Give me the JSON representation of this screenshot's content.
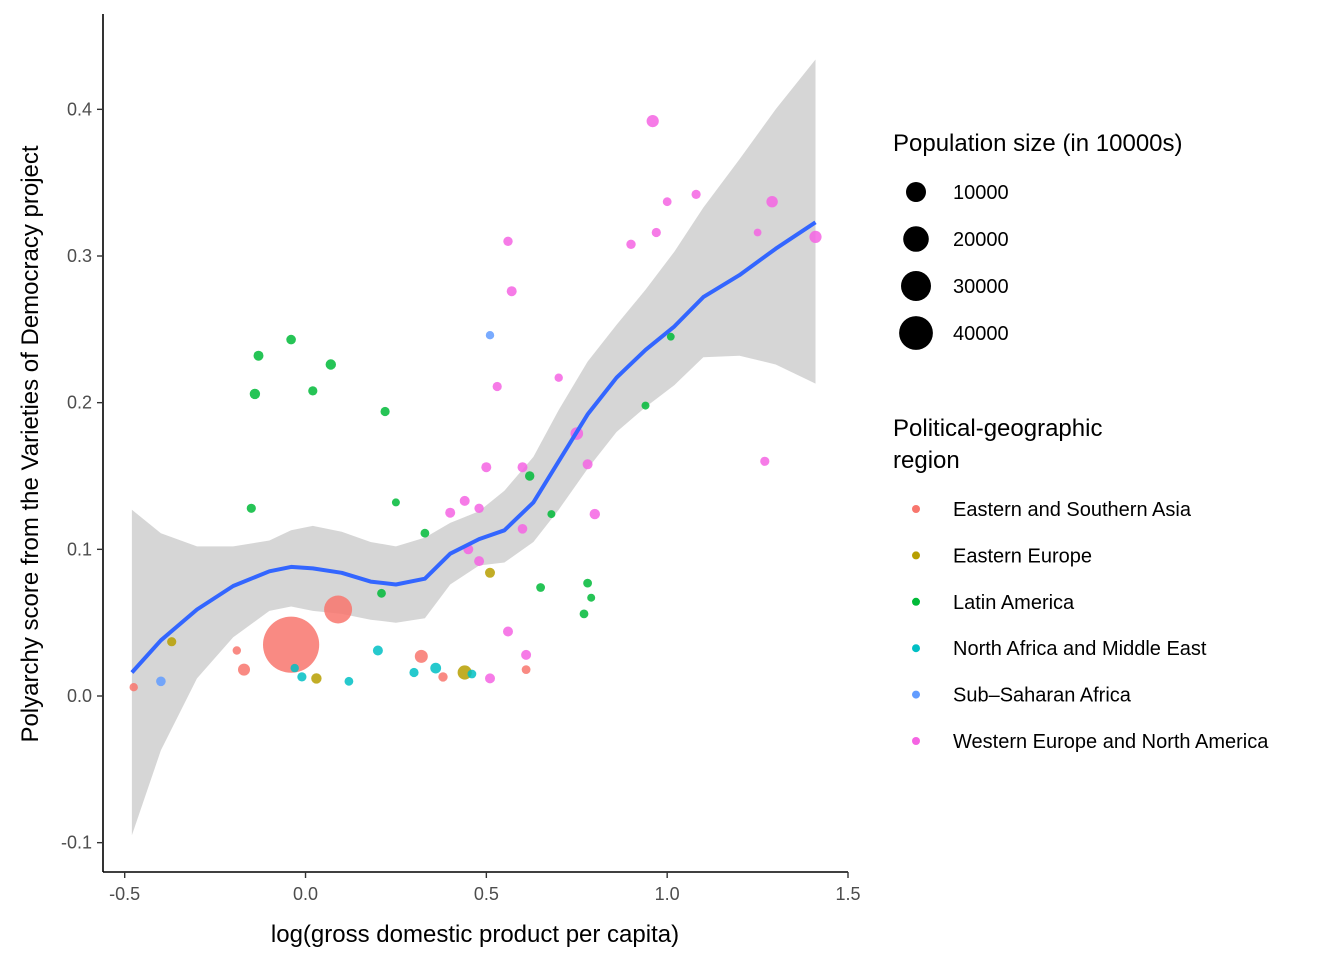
{
  "chart_data": {
    "type": "scatter",
    "xlabel": "log(gross domestic product per capita)",
    "ylabel": "Polyarchy score from the Varieties of Democracy project",
    "xlim": [
      -0.56,
      1.5
    ],
    "ylim": [
      -0.12,
      0.465
    ],
    "x_ticks": [
      -0.5,
      0,
      0.5,
      1.0,
      1.5
    ],
    "x_tick_labels": [
      "-0.5",
      "0.0",
      "0.5",
      "1.0",
      "1.5"
    ],
    "y_ticks": [
      -0.1,
      0,
      0.1,
      0.2,
      0.3,
      0.4
    ],
    "y_tick_labels": [
      "-0.1",
      "0.0",
      "0.1",
      "0.2",
      "0.3",
      "0.4"
    ],
    "grid": false,
    "legend_position": "right",
    "size_legend": {
      "title": "Population size (in 10000s)",
      "entries": [
        {
          "label": "10000",
          "value": 10000
        },
        {
          "label": "20000",
          "value": 20000
        },
        {
          "label": "30000",
          "value": 30000
        },
        {
          "label": "40000",
          "value": 40000
        }
      ]
    },
    "color_legend": {
      "title_lines": [
        "Political-geographic",
        "region"
      ],
      "entries": [
        {
          "label": "Eastern and Southern Asia",
          "color": "#F8766D"
        },
        {
          "label": "Eastern Europe",
          "color": "#B79F00"
        },
        {
          "label": "Latin America",
          "color": "#00BA38"
        },
        {
          "label": "North Africa and Middle East",
          "color": "#00BFC4"
        },
        {
          "label": "Sub–Saharan Africa",
          "color": "#619CFF"
        },
        {
          "label": "Western Europe and North America",
          "color": "#F564E3"
        }
      ]
    },
    "smooth": {
      "color": "#3366FF",
      "band_color": "#999999",
      "x": [
        -0.48,
        -0.4,
        -0.3,
        -0.2,
        -0.1,
        -0.04,
        0.02,
        0.1,
        0.18,
        0.25,
        0.33,
        0.4,
        0.48,
        0.55,
        0.63,
        0.7,
        0.78,
        0.86,
        0.94,
        1.02,
        1.1,
        1.2,
        1.3,
        1.41
      ],
      "y": [
        0.016,
        0.038,
        0.059,
        0.075,
        0.085,
        0.088,
        0.087,
        0.084,
        0.078,
        0.076,
        0.08,
        0.097,
        0.107,
        0.113,
        0.132,
        0.16,
        0.192,
        0.217,
        0.236,
        0.252,
        0.272,
        0.287,
        0.305,
        0.323
      ],
      "upper": [
        0.127,
        0.111,
        0.102,
        0.102,
        0.106,
        0.113,
        0.116,
        0.112,
        0.105,
        0.102,
        0.108,
        0.118,
        0.126,
        0.14,
        0.163,
        0.195,
        0.228,
        0.253,
        0.277,
        0.303,
        0.333,
        0.366,
        0.4,
        0.434
      ],
      "lower": [
        -0.095,
        -0.037,
        0.012,
        0.04,
        0.058,
        0.061,
        0.058,
        0.056,
        0.052,
        0.05,
        0.053,
        0.076,
        0.089,
        0.091,
        0.105,
        0.127,
        0.155,
        0.18,
        0.197,
        0.212,
        0.231,
        0.232,
        0.226,
        0.213
      ]
    },
    "series": [
      {
        "name": "Eastern and Southern Asia",
        "color": "#F8766D",
        "points": [
          {
            "x": -0.475,
            "y": 0.006,
            "pop": 300
          },
          {
            "x": -0.19,
            "y": 0.031,
            "pop": 300
          },
          {
            "x": -0.17,
            "y": 0.018,
            "pop": 1800
          },
          {
            "x": -0.04,
            "y": 0.035,
            "pop": 130000
          },
          {
            "x": 0.09,
            "y": 0.059,
            "pop": 25000
          },
          {
            "x": 0.32,
            "y": 0.027,
            "pop": 2500
          },
          {
            "x": 0.38,
            "y": 0.013,
            "pop": 600
          },
          {
            "x": 0.61,
            "y": 0.018,
            "pop": 400
          }
        ]
      },
      {
        "name": "Eastern Europe",
        "color": "#B79F00",
        "points": [
          {
            "x": -0.37,
            "y": 0.037,
            "pop": 500
          },
          {
            "x": 0.03,
            "y": 0.012,
            "pop": 1000
          },
          {
            "x": 0.44,
            "y": 0.016,
            "pop": 3500
          },
          {
            "x": 0.51,
            "y": 0.084,
            "pop": 800
          }
        ]
      },
      {
        "name": "Latin America",
        "color": "#00BA38",
        "points": [
          {
            "x": -0.14,
            "y": 0.206,
            "pop": 1000
          },
          {
            "x": -0.13,
            "y": 0.232,
            "pop": 800
          },
          {
            "x": -0.04,
            "y": 0.243,
            "pop": 700
          },
          {
            "x": 0.02,
            "y": 0.208,
            "pop": 500
          },
          {
            "x": 0.07,
            "y": 0.226,
            "pop": 1000
          },
          {
            "x": -0.15,
            "y": 0.128,
            "pop": 500
          },
          {
            "x": 0.22,
            "y": 0.194,
            "pop": 500
          },
          {
            "x": 0.25,
            "y": 0.132,
            "pop": 200
          },
          {
            "x": 0.33,
            "y": 0.111,
            "pop": 400
          },
          {
            "x": 0.21,
            "y": 0.07,
            "pop": 400
          },
          {
            "x": 0.62,
            "y": 0.15,
            "pop": 600
          },
          {
            "x": 0.65,
            "y": 0.074,
            "pop": 400
          },
          {
            "x": 0.68,
            "y": 0.124,
            "pop": 200
          },
          {
            "x": 0.78,
            "y": 0.077,
            "pop": 400
          },
          {
            "x": 0.77,
            "y": 0.056,
            "pop": 400
          },
          {
            "x": 0.79,
            "y": 0.067,
            "pop": 200
          },
          {
            "x": 0.94,
            "y": 0.198,
            "pop": 200
          },
          {
            "x": 1.01,
            "y": 0.245,
            "pop": 150
          }
        ]
      },
      {
        "name": "North Africa and Middle East",
        "color": "#00BFC4",
        "points": [
          {
            "x": -0.03,
            "y": 0.019,
            "pop": 300
          },
          {
            "x": -0.01,
            "y": 0.013,
            "pop": 500
          },
          {
            "x": 0.12,
            "y": 0.01,
            "pop": 400
          },
          {
            "x": 0.2,
            "y": 0.031,
            "pop": 800
          },
          {
            "x": 0.3,
            "y": 0.016,
            "pop": 500
          },
          {
            "x": 0.36,
            "y": 0.019,
            "pop": 1200
          },
          {
            "x": 0.46,
            "y": 0.015,
            "pop": 400
          }
        ]
      },
      {
        "name": "Sub–Saharan Africa",
        "color": "#619CFF",
        "points": [
          {
            "x": -0.4,
            "y": 0.01,
            "pop": 700
          },
          {
            "x": 0.51,
            "y": 0.246,
            "pop": 300
          }
        ]
      },
      {
        "name": "Western Europe and North America",
        "color": "#F564E3",
        "points": [
          {
            "x": 0.96,
            "y": 0.392,
            "pop": 2000
          },
          {
            "x": 1.0,
            "y": 0.337,
            "pop": 400
          },
          {
            "x": 1.08,
            "y": 0.342,
            "pop": 500
          },
          {
            "x": 1.29,
            "y": 0.337,
            "pop": 1500
          },
          {
            "x": 0.9,
            "y": 0.308,
            "pop": 600
          },
          {
            "x": 0.97,
            "y": 0.316,
            "pop": 500
          },
          {
            "x": 1.25,
            "y": 0.316,
            "pop": 150
          },
          {
            "x": 1.41,
            "y": 0.313,
            "pop": 2000
          },
          {
            "x": 0.56,
            "y": 0.31,
            "pop": 600
          },
          {
            "x": 0.57,
            "y": 0.276,
            "pop": 800
          },
          {
            "x": 0.53,
            "y": 0.211,
            "pop": 500
          },
          {
            "x": 0.7,
            "y": 0.217,
            "pop": 300
          },
          {
            "x": 0.75,
            "y": 0.179,
            "pop": 2200
          },
          {
            "x": 0.78,
            "y": 0.158,
            "pop": 800
          },
          {
            "x": 0.5,
            "y": 0.156,
            "pop": 800
          },
          {
            "x": 0.6,
            "y": 0.156,
            "pop": 800
          },
          {
            "x": 1.27,
            "y": 0.16,
            "pop": 500
          },
          {
            "x": 0.44,
            "y": 0.133,
            "pop": 800
          },
          {
            "x": 0.4,
            "y": 0.125,
            "pop": 800
          },
          {
            "x": 0.48,
            "y": 0.128,
            "pop": 600
          },
          {
            "x": 0.6,
            "y": 0.114,
            "pop": 700
          },
          {
            "x": 0.8,
            "y": 0.124,
            "pop": 1000
          },
          {
            "x": 0.45,
            "y": 0.1,
            "pop": 800
          },
          {
            "x": 0.48,
            "y": 0.092,
            "pop": 800
          },
          {
            "x": 0.56,
            "y": 0.044,
            "pop": 800
          },
          {
            "x": 0.61,
            "y": 0.028,
            "pop": 800
          },
          {
            "x": 0.51,
            "y": 0.012,
            "pop": 800
          }
        ]
      }
    ]
  }
}
